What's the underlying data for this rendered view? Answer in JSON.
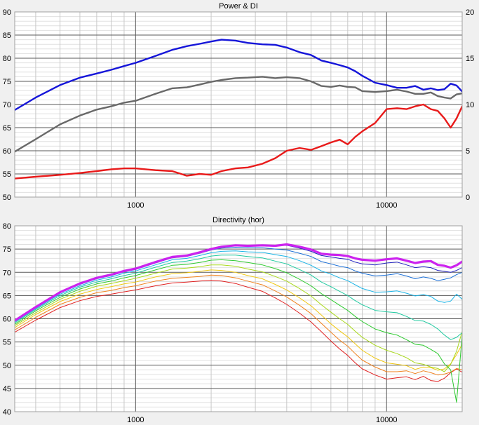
{
  "chart_data": [
    {
      "type": "line",
      "title": "Power & DI",
      "xscale": "log",
      "xlim": [
        330,
        20000
      ],
      "ylim": [
        50,
        90
      ],
      "y2lim": [
        0,
        20
      ],
      "x_tick_labels": [
        "1000",
        "10000"
      ],
      "y_tick_labels": [
        "50",
        "55",
        "60",
        "65",
        "70",
        "75",
        "80",
        "85",
        "90"
      ],
      "y2_tick_labels": [
        "0",
        "5",
        "10",
        "15",
        "20"
      ],
      "grid": true,
      "series": [
        {
          "color": "#1515d9",
          "axis": "left",
          "width": 2.4,
          "x": [
            330,
            400,
            500,
            600,
            700,
            800,
            900,
            1000,
            1200,
            1400,
            1600,
            1800,
            2000,
            2200,
            2500,
            2800,
            3200,
            3600,
            4000,
            4500,
            5000,
            5500,
            6000,
            6500,
            7000,
            7500,
            8000,
            9000,
            10000,
            11000,
            12000,
            13000,
            14000,
            15000,
            16000,
            17000,
            18000,
            19000,
            20000
          ],
          "y": [
            68.8,
            71.5,
            74.2,
            75.8,
            76.7,
            77.5,
            78.3,
            79,
            80.5,
            81.8,
            82.6,
            83.1,
            83.6,
            84,
            83.8,
            83.3,
            83,
            82.9,
            82.3,
            81.3,
            80.7,
            79.5,
            79,
            78.5,
            78,
            77.2,
            76.2,
            74.7,
            74.2,
            73.6,
            73.6,
            74,
            73.2,
            73.5,
            73.1,
            73.3,
            74.5,
            74.1,
            72.8
          ]
        },
        {
          "color": "#696969",
          "axis": "left",
          "width": 2.4,
          "x": [
            330,
            400,
            500,
            600,
            700,
            800,
            900,
            1000,
            1200,
            1400,
            1600,
            1800,
            2000,
            2200,
            2500,
            2800,
            3200,
            3600,
            4000,
            4500,
            5000,
            5500,
            6000,
            6500,
            7000,
            7500,
            8000,
            9000,
            10000,
            11000,
            12000,
            13000,
            14000,
            15000,
            16000,
            17000,
            18000,
            19000,
            20000
          ],
          "y": [
            59.8,
            62.5,
            65.7,
            67.6,
            68.9,
            69.6,
            70.4,
            70.8,
            72.3,
            73.5,
            73.7,
            74.3,
            74.9,
            75.3,
            75.7,
            75.8,
            76,
            75.7,
            75.9,
            75.7,
            75,
            74,
            73.8,
            74.1,
            73.8,
            73.7,
            72.9,
            72.7,
            72.9,
            73.2,
            72.8,
            72.3,
            72.3,
            72.6,
            71.8,
            71.5,
            71.3,
            72.2,
            72.4
          ]
        },
        {
          "color": "#e81a1a",
          "axis": "right",
          "width": 2.4,
          "x": [
            330,
            400,
            500,
            600,
            700,
            800,
            900,
            1000,
            1100,
            1200,
            1400,
            1600,
            1800,
            2000,
            2200,
            2500,
            2800,
            3200,
            3600,
            4000,
            4500,
            5000,
            5500,
            6000,
            6500,
            7000,
            7500,
            8000,
            9000,
            10000,
            11000,
            12000,
            13000,
            14000,
            15000,
            16000,
            17000,
            18000,
            19000,
            20000
          ],
          "y": [
            2.0,
            2.2,
            2.4,
            2.6,
            2.8,
            3.0,
            3.1,
            3.1,
            3.0,
            2.9,
            2.8,
            2.3,
            2.5,
            2.4,
            2.8,
            3.1,
            3.2,
            3.6,
            4.2,
            5.0,
            5.3,
            5.1,
            5.5,
            5.9,
            6.2,
            5.7,
            6.5,
            7.1,
            8.0,
            9.5,
            9.6,
            9.5,
            9.8,
            10,
            9.5,
            9.3,
            8.5,
            7.5,
            8.5,
            9.8
          ]
        }
      ]
    },
    {
      "type": "line",
      "title": "Directivity (hor)",
      "xscale": "log",
      "xlim": [
        330,
        20000
      ],
      "ylim": [
        40,
        80
      ],
      "x_tick_labels": [
        "1000",
        "10000"
      ],
      "y_tick_labels": [
        "40",
        "45",
        "50",
        "55",
        "60",
        "65",
        "70",
        "75",
        "80"
      ],
      "grid": true,
      "x": [
        330,
        400,
        500,
        600,
        700,
        800,
        900,
        1000,
        1200,
        1400,
        1600,
        1800,
        2000,
        2200,
        2500,
        2800,
        3200,
        3600,
        4000,
        4500,
        5000,
        5500,
        6000,
        6500,
        7000,
        7500,
        8000,
        9000,
        10000,
        11000,
        12000,
        13000,
        14000,
        15000,
        16000,
        17000,
        18000,
        19000,
        20000
      ],
      "series": [
        {
          "color": "#cc22ee",
          "width": 3.2,
          "y": [
            59.6,
            62.5,
            65.7,
            67.6,
            68.8,
            69.5,
            70.3,
            70.8,
            72.2,
            73.3,
            73.6,
            74.3,
            75,
            75.5,
            75.8,
            75.7,
            75.8,
            75.7,
            76,
            75.5,
            74.9,
            74,
            73.8,
            73.7,
            73.5,
            73,
            72.7,
            72.5,
            72.8,
            73,
            72.5,
            72,
            72.3,
            72.4,
            71.6,
            71.4,
            71,
            71.5,
            72.3
          ]
        },
        {
          "color": "#2020c0",
          "width": 1,
          "y": [
            59.6,
            62.5,
            65.7,
            67.6,
            68.8,
            69.5,
            70.3,
            70.8,
            72.2,
            73.3,
            73.6,
            74.3,
            75,
            75.5,
            75.8,
            75.7,
            75.8,
            75.7,
            75.8,
            75.2,
            74.5,
            73.6,
            73.3,
            73,
            72.8,
            72.2,
            71.8,
            71.6,
            72,
            72.2,
            71.6,
            71,
            71.2,
            71,
            70.4,
            70.2,
            70,
            70.4,
            71
          ]
        },
        {
          "color": "#1b6fd6",
          "width": 1,
          "y": [
            59.5,
            62.4,
            65.6,
            67.4,
            68.6,
            69.3,
            70.1,
            70.6,
            72,
            73.1,
            73.4,
            74.1,
            74.8,
            75.2,
            75.4,
            75.3,
            75.3,
            75,
            74.8,
            74.1,
            73.4,
            72.3,
            71.8,
            71.3,
            71,
            70.3,
            69.8,
            69.2,
            69.4,
            69.7,
            69.2,
            68.6,
            69,
            68.7,
            68.2,
            68.5,
            68.8,
            69.5,
            70
          ]
        },
        {
          "color": "#18b3e6",
          "width": 1,
          "y": [
            59.3,
            62.2,
            65.3,
            67.1,
            68.3,
            69,
            69.8,
            70.3,
            71.6,
            72.7,
            73,
            73.6,
            74.2,
            74.5,
            74.6,
            74.4,
            74.3,
            73.8,
            73.4,
            72.5,
            71.5,
            70.3,
            69.6,
            68.8,
            68.2,
            67.3,
            66.5,
            65.7,
            65.8,
            66,
            65.5,
            64.9,
            65.2,
            64.8,
            63.8,
            63.5,
            63.8,
            65.3,
            64.2
          ]
        },
        {
          "color": "#20c9a0",
          "width": 1,
          "y": [
            59.1,
            62,
            65,
            66.8,
            67.9,
            68.6,
            69.3,
            69.8,
            71.1,
            72.1,
            72.4,
            72.9,
            73.5,
            73.7,
            73.7,
            73.4,
            73.1,
            72.4,
            71.8,
            70.6,
            69.4,
            67.9,
            66.9,
            65.9,
            65,
            63.9,
            63,
            61.8,
            61.5,
            61.3,
            60.5,
            59.6,
            59.5,
            58.8,
            57.8,
            56.5,
            55.5,
            56,
            57
          ]
        },
        {
          "color": "#2ec930",
          "width": 1,
          "y": [
            58.8,
            61.7,
            64.6,
            66.4,
            67.5,
            68.1,
            68.8,
            69.3,
            70.5,
            71.5,
            71.7,
            72.1,
            72.6,
            72.7,
            72.5,
            72.1,
            71.6,
            70.8,
            69.9,
            68.5,
            67.1,
            65.4,
            64.1,
            62.9,
            61.8,
            60.5,
            59.4,
            57.8,
            57,
            56.5,
            55.5,
            54.5,
            54.3,
            53.4,
            52.5,
            50.3,
            49,
            42,
            56.5
          ]
        },
        {
          "color": "#a8d81b",
          "width": 1,
          "y": [
            58.5,
            61.3,
            64.2,
            65.9,
            67,
            67.6,
            68.2,
            68.7,
            69.8,
            70.7,
            70.9,
            71.2,
            71.6,
            71.6,
            71.3,
            70.7,
            70.1,
            69.1,
            68.1,
            66.5,
            64.9,
            63,
            61.4,
            60,
            58.8,
            57.3,
            56,
            54.3,
            53.2,
            52.5,
            51.6,
            50.5,
            50.2,
            49.6,
            49.3,
            48.6,
            50.2,
            53,
            57.3
          ]
        },
        {
          "color": "#f0c814",
          "width": 1,
          "y": [
            58.1,
            60.9,
            63.7,
            65.3,
            66.3,
            66.9,
            67.5,
            67.9,
            69,
            69.7,
            69.9,
            70.2,
            70.5,
            70.4,
            70,
            69.3,
            68.6,
            67.4,
            66.2,
            64.5,
            62.8,
            60.8,
            58.9,
            57.4,
            56.1,
            54.6,
            53.2,
            51.5,
            50.5,
            50.2,
            49.9,
            49.1,
            49.6,
            49.5,
            48.9,
            49.2,
            50.3,
            52.3,
            54.5
          ]
        },
        {
          "color": "#f0821e",
          "width": 1,
          "y": [
            57.6,
            60.3,
            63.1,
            64.6,
            65.6,
            66.1,
            66.7,
            67.1,
            68.1,
            68.7,
            68.9,
            69.1,
            69.4,
            69.3,
            68.8,
            68.1,
            67.3,
            66,
            64.7,
            62.9,
            61.1,
            59,
            57.1,
            55.4,
            54.1,
            52.5,
            51.1,
            49.6,
            48.6,
            48.6,
            48.8,
            48.2,
            48.8,
            48.4,
            47.9,
            48.1,
            48.5,
            49.3,
            49
          ]
        },
        {
          "color": "#e02020",
          "width": 1,
          "y": [
            57.1,
            59.7,
            62.4,
            63.9,
            64.8,
            65.3,
            65.8,
            66.2,
            67.1,
            67.7,
            67.9,
            68.1,
            68.3,
            68.1,
            67.6,
            66.8,
            65.9,
            64.5,
            63.1,
            61.2,
            59.3,
            57.2,
            55.2,
            53.5,
            52.1,
            50.5,
            49.2,
            47.9,
            47,
            47.3,
            47.5,
            46.9,
            47.6,
            46.7,
            46.5,
            47.2,
            48.4,
            49.2,
            48.5
          ]
        }
      ]
    }
  ]
}
